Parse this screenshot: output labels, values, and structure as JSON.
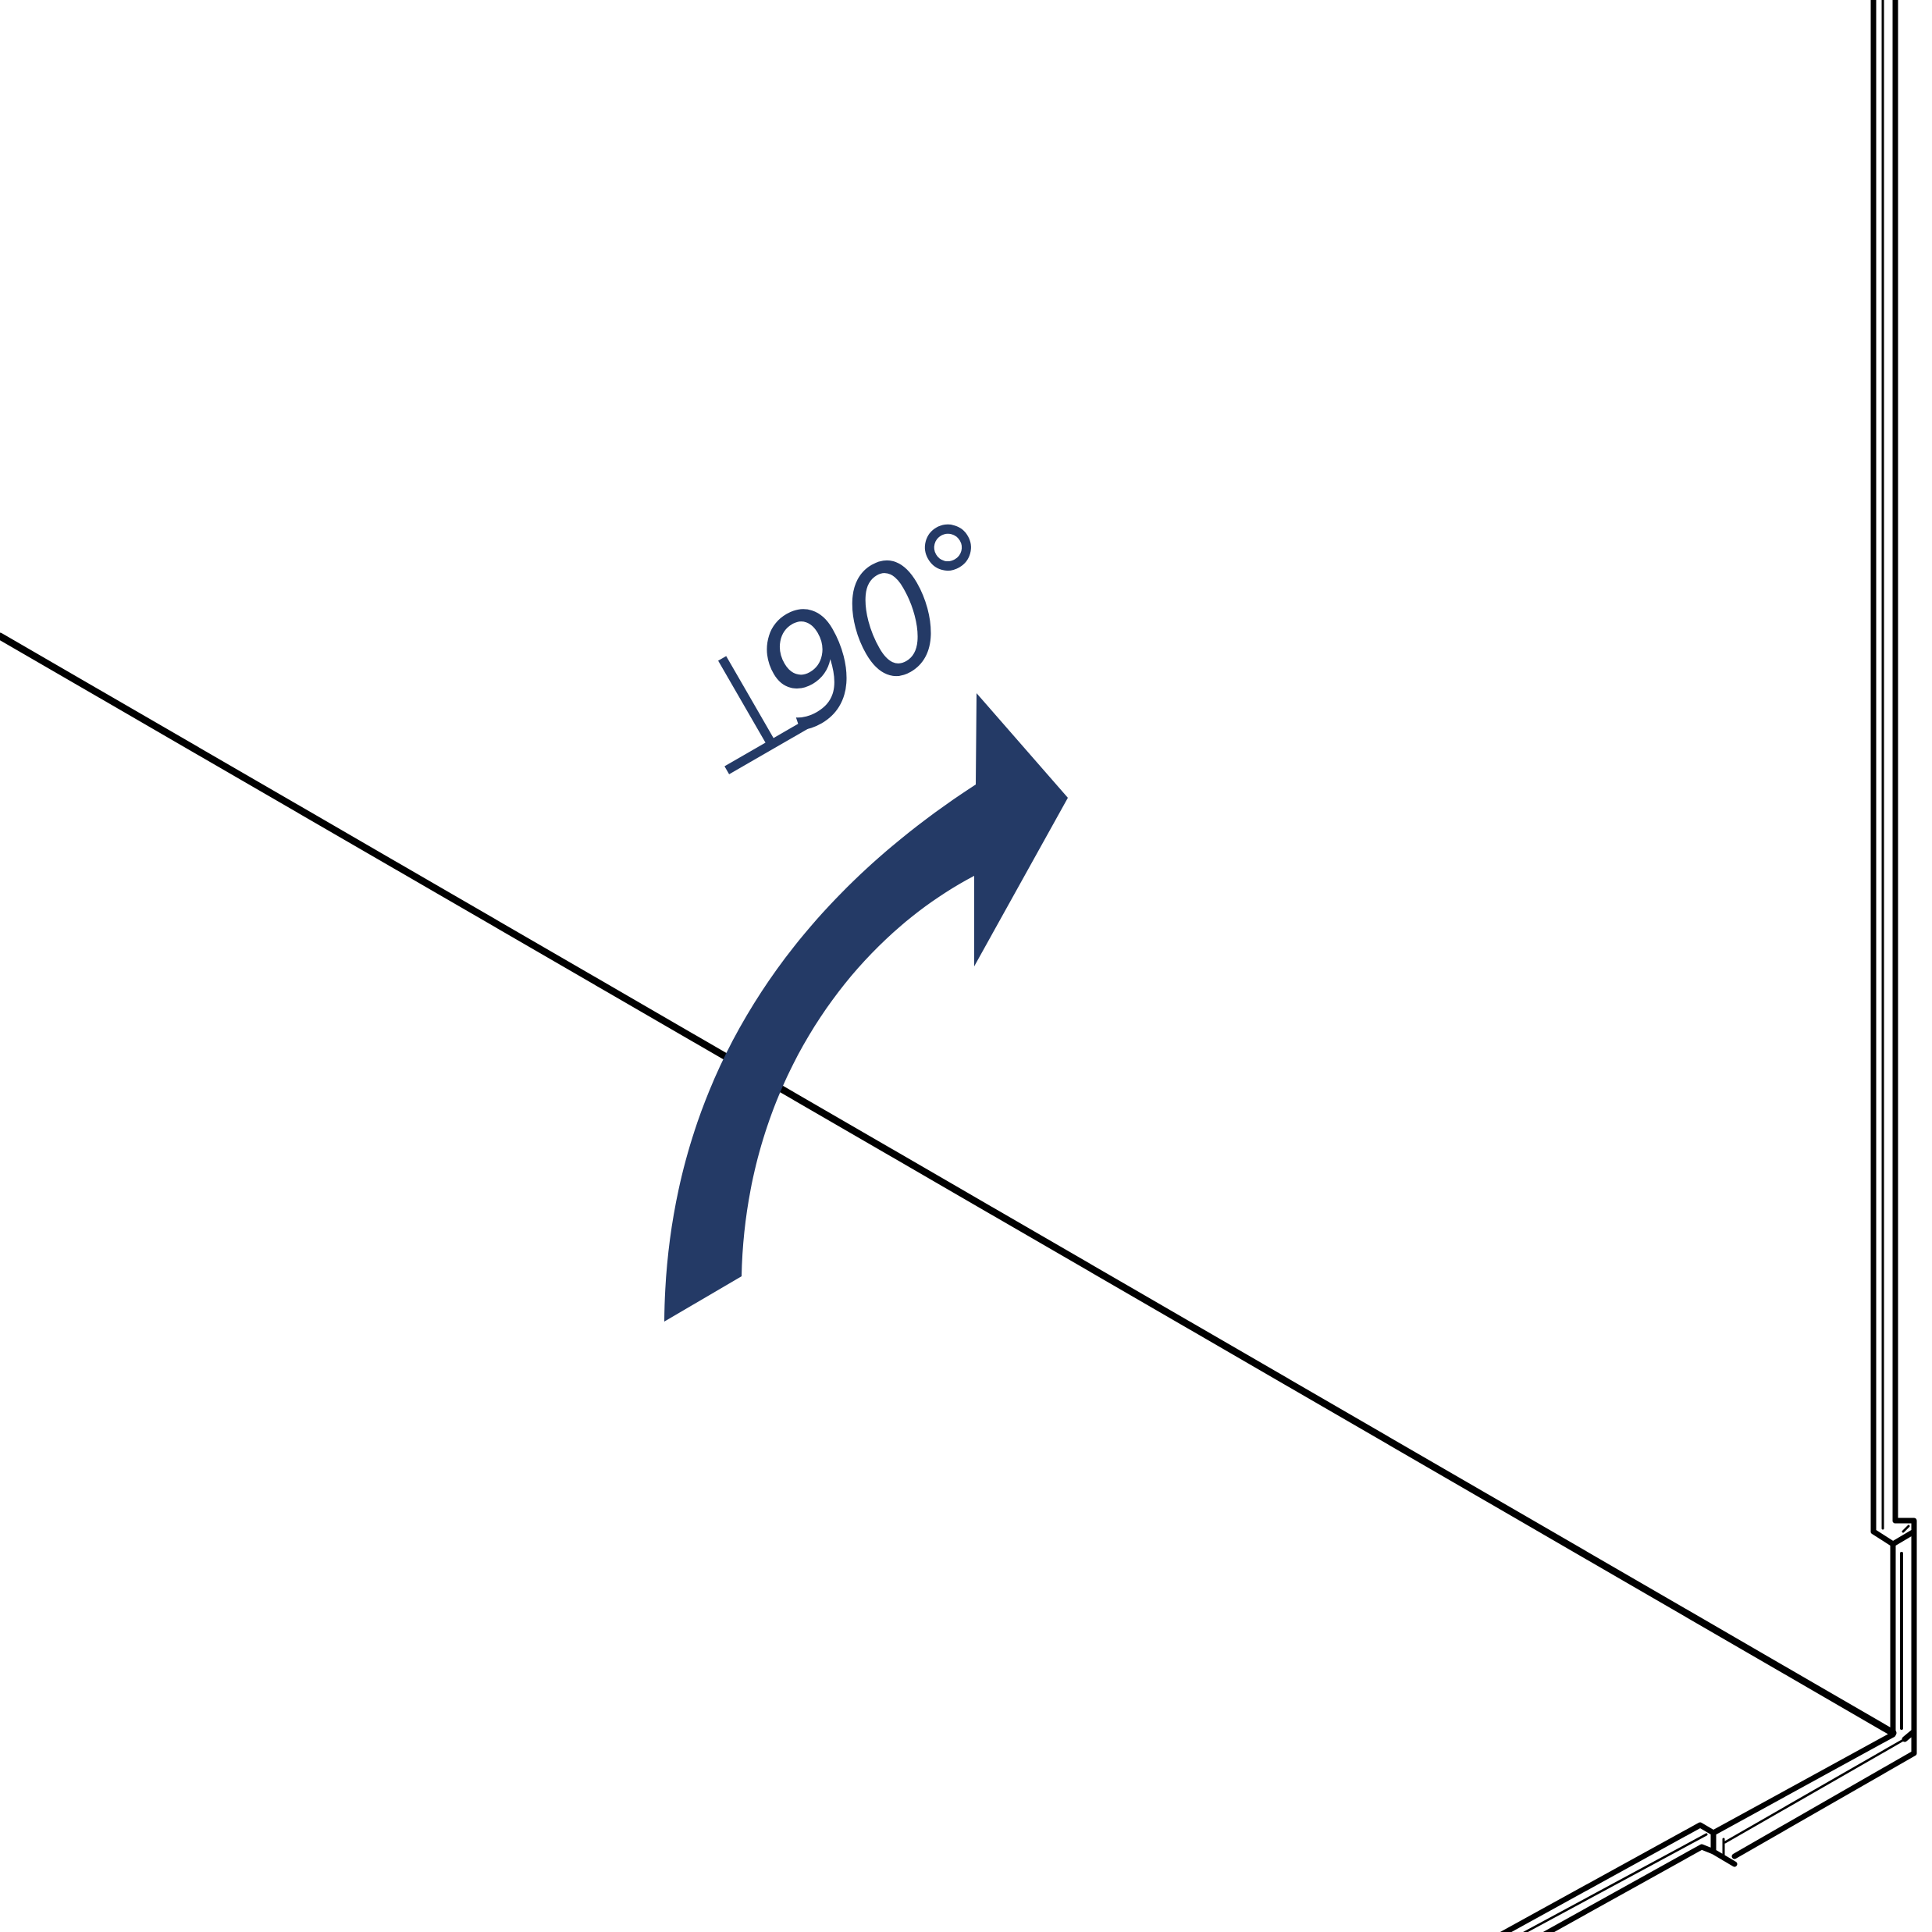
{
  "diagram": {
    "angle_label": "90°",
    "perpendicular_symbol": "⊥",
    "accent_color": "#243a66",
    "line_color": "#000000",
    "background_color": "#ffffff"
  }
}
